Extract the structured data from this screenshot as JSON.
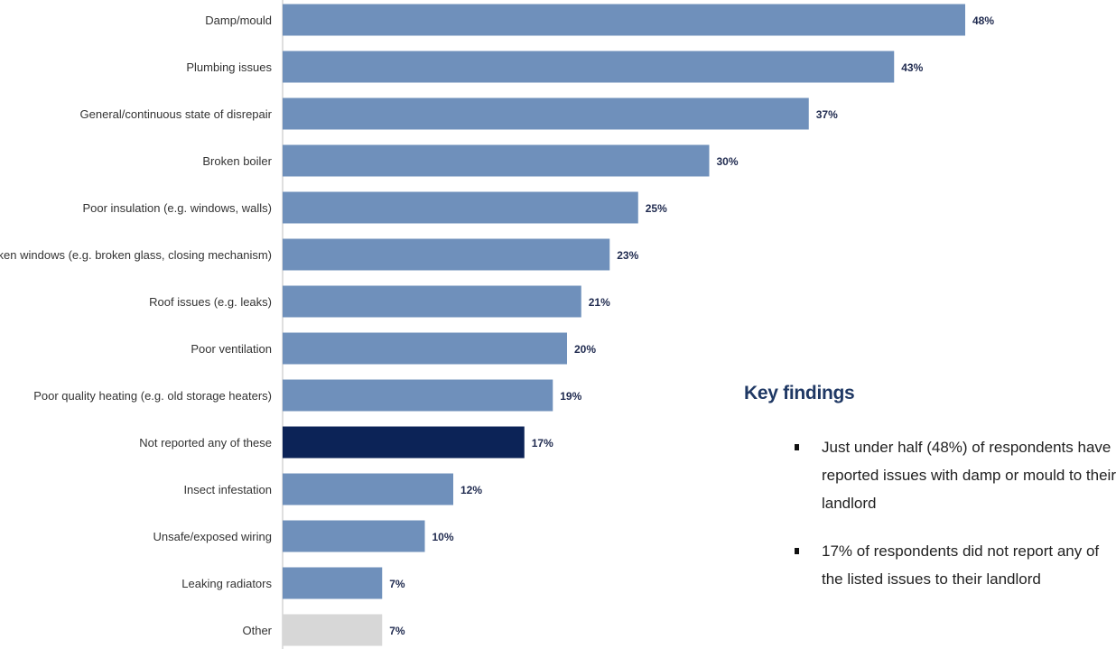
{
  "chart_data": {
    "type": "bar",
    "orientation": "horizontal",
    "title": "",
    "xlabel": "",
    "ylabel": "",
    "xlim": [
      0,
      48
    ],
    "grid": false,
    "legend": "none",
    "categories": [
      "Damp/mould",
      "Plumbing issues",
      "General/continuous state of disrepair",
      "Broken boiler",
      "Poor insulation (e.g. windows, walls)",
      "Broken windows (e.g. broken glass, closing mechanism)",
      "Roof issues (e.g. leaks)",
      "Poor ventilation",
      "Poor quality heating (e.g. old storage heaters)",
      "Not reported any of these",
      "Insect infestation",
      "Unsafe/exposed wiring",
      "Leaking radiators",
      "Other"
    ],
    "values": [
      48,
      43,
      37,
      30,
      25,
      23,
      21,
      20,
      19,
      17,
      12,
      10,
      7,
      7
    ],
    "value_labels": [
      "48%",
      "43%",
      "37%",
      "30%",
      "25%",
      "23%",
      "21%",
      "20%",
      "19%",
      "17%",
      "12%",
      "10%",
      "7%",
      "7%"
    ],
    "bar_colors": [
      "#6f90bb",
      "#6f90bb",
      "#6f90bb",
      "#6f90bb",
      "#6f90bb",
      "#6f90bb",
      "#6f90bb",
      "#6f90bb",
      "#6f90bb",
      "#0c2357",
      "#6f90bb",
      "#6f90bb",
      "#6f90bb",
      "#d7d7d7"
    ]
  },
  "findings": {
    "title": "Key findings",
    "bullets": [
      "Just under half (48%) of respondents have reported issues with damp or mould to their landlord",
      "17% of respondents did not report any of the listed issues to their landlord"
    ]
  }
}
